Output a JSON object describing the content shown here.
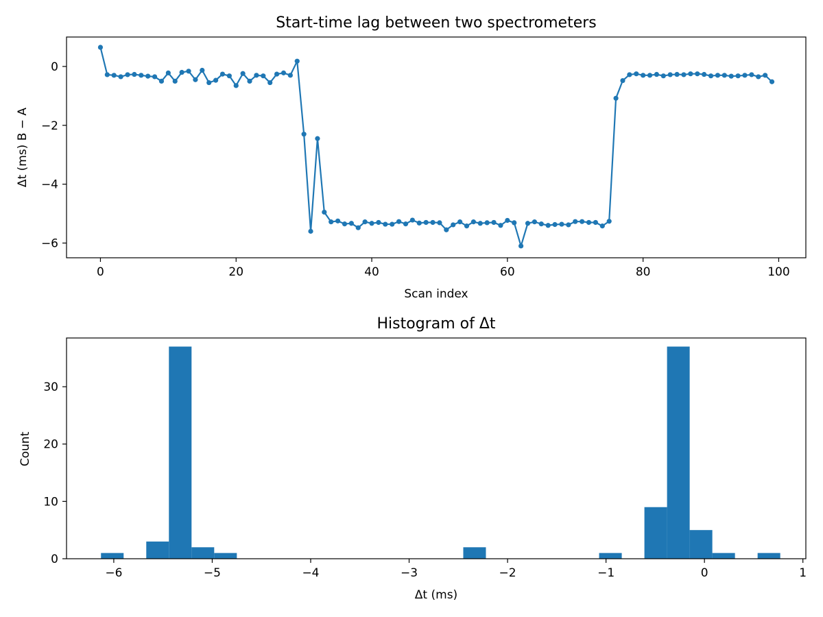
{
  "chart_data": [
    {
      "type": "line",
      "title": "Start-time lag between two spectrometers",
      "xlabel": "Scan index",
      "ylabel": "Δt  (ms)   B − A",
      "xlim": [
        -5,
        104
      ],
      "ylim": [
        -6.5,
        1.0
      ],
      "xticks": [
        0,
        20,
        40,
        60,
        80,
        100
      ],
      "yticks": [
        -6,
        -4,
        -2,
        0
      ],
      "yticklabels": [
        "−6",
        "−4",
        "−2",
        "0"
      ],
      "grid": false,
      "color": "#1f77b4",
      "markers": true,
      "x": [
        0,
        1,
        2,
        3,
        4,
        5,
        6,
        7,
        8,
        9,
        10,
        11,
        12,
        13,
        14,
        15,
        16,
        17,
        18,
        19,
        20,
        21,
        22,
        23,
        24,
        25,
        26,
        27,
        28,
        29,
        30,
        31,
        32,
        33,
        34,
        35,
        36,
        37,
        38,
        39,
        40,
        41,
        42,
        43,
        44,
        45,
        46,
        47,
        48,
        49,
        50,
        51,
        52,
        53,
        54,
        55,
        56,
        57,
        58,
        59,
        60,
        61,
        62,
        63,
        64,
        65,
        66,
        67,
        68,
        69,
        70,
        71,
        72,
        73,
        74,
        75,
        76,
        77,
        78,
        79,
        80,
        81,
        82,
        83,
        84,
        85,
        86,
        87,
        88,
        89,
        90,
        91,
        92,
        93,
        94,
        95,
        96,
        97,
        98,
        99
      ],
      "y": [
        0.65,
        -0.28,
        -0.3,
        -0.35,
        -0.28,
        -0.27,
        -0.3,
        -0.33,
        -0.35,
        -0.5,
        -0.22,
        -0.5,
        -0.2,
        -0.16,
        -0.45,
        -0.13,
        -0.55,
        -0.47,
        -0.26,
        -0.32,
        -0.65,
        -0.24,
        -0.5,
        -0.3,
        -0.32,
        -0.55,
        -0.26,
        -0.22,
        -0.3,
        0.18,
        -2.3,
        -5.6,
        -2.45,
        -4.95,
        -5.28,
        -5.25,
        -5.35,
        -5.33,
        -5.48,
        -5.28,
        -5.33,
        -5.3,
        -5.36,
        -5.36,
        -5.27,
        -5.35,
        -5.22,
        -5.32,
        -5.3,
        -5.3,
        -5.31,
        -5.55,
        -5.38,
        -5.28,
        -5.42,
        -5.28,
        -5.33,
        -5.31,
        -5.3,
        -5.4,
        -5.23,
        -5.31,
        -6.1,
        -5.33,
        -5.28,
        -5.35,
        -5.4,
        -5.37,
        -5.36,
        -5.38,
        -5.27,
        -5.27,
        -5.3,
        -5.3,
        -5.42,
        -5.26,
        -1.08,
        -0.48,
        -0.28,
        -0.25,
        -0.3,
        -0.3,
        -0.27,
        -0.32,
        -0.28,
        -0.27,
        -0.28,
        -0.25,
        -0.25,
        -0.27,
        -0.32,
        -0.3,
        -0.3,
        -0.33,
        -0.32,
        -0.3,
        -0.28,
        -0.35,
        -0.3,
        -0.52
      ]
    },
    {
      "type": "bar",
      "title": "Histogram of Δt",
      "xlabel": "Δt  (ms)",
      "ylabel": "Count",
      "xlim": [
        -6.48,
        1.03
      ],
      "ylim": [
        0,
        38.5
      ],
      "xticks": [
        -6,
        -5,
        -4,
        -3,
        -2,
        -1,
        0,
        1
      ],
      "xticklabels": [
        "−6",
        "−5",
        "−4",
        "−3",
        "−2",
        "−1",
        "0",
        "1"
      ],
      "yticks": [
        0,
        10,
        20,
        30
      ],
      "grid": false,
      "color": "#1f77b4",
      "bin_edges": [
        -6.13,
        -5.9,
        -5.67,
        -5.44,
        -5.21,
        -4.98,
        -4.75,
        -4.52,
        -4.29,
        -4.06,
        -3.83,
        -3.6,
        -3.37,
        -3.14,
        -2.91,
        -2.68,
        -2.45,
        -2.22,
        -1.99,
        -1.76,
        -1.53,
        -1.3,
        -1.07,
        -0.84,
        -0.61,
        -0.38,
        -0.15,
        0.08,
        0.31,
        0.54,
        0.77
      ],
      "counts": [
        1,
        0,
        3,
        37,
        2,
        1,
        0,
        0,
        0,
        0,
        0,
        0,
        0,
        0,
        0,
        0,
        2,
        0,
        0,
        0,
        0,
        0,
        1,
        0,
        9,
        37,
        5,
        1,
        0,
        1
      ]
    }
  ]
}
